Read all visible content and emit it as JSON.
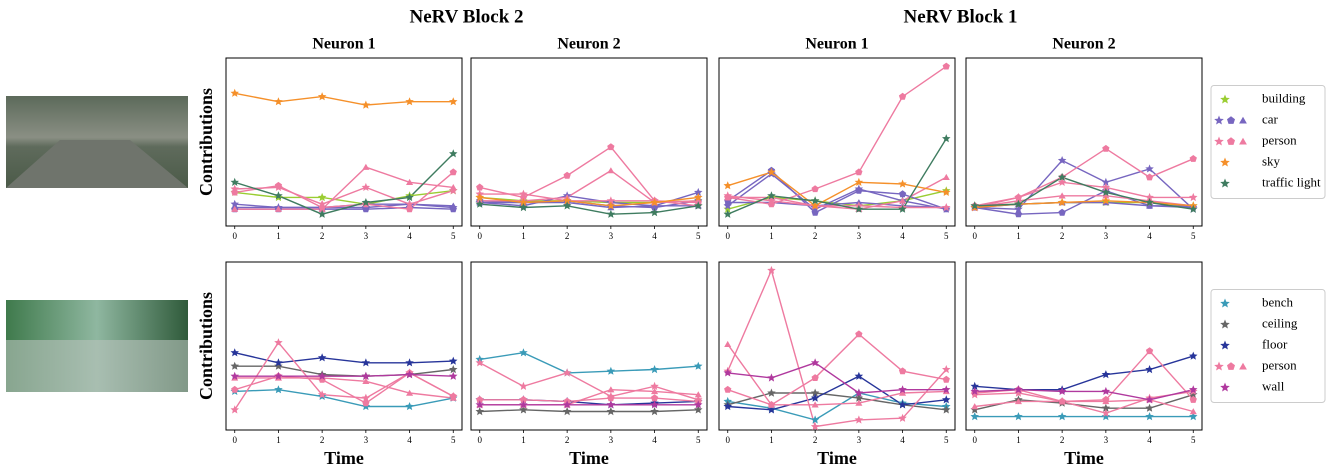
{
  "headers": [
    "NeRV Block 2",
    "NeRV Block 1"
  ],
  "chart_data": [
    {
      "type": "line",
      "title": "Neuron 1",
      "ylabel": "Contributions",
      "legend": "right",
      "x": [
        0,
        1,
        2,
        3,
        4,
        5
      ],
      "xlim": [
        -0.2,
        5.2
      ],
      "xticks": [
        0,
        1,
        2,
        3,
        4,
        5
      ],
      "ylim": [
        0,
        1
      ],
      "series": [
        {
          "name": "building",
          "color": "#9acd32",
          "marker": "star",
          "values": [
            0.2,
            0.17,
            0.17,
            0.13,
            0.18,
            0.21
          ]
        },
        {
          "name": "car",
          "color": "#7766c0",
          "marker": "star",
          "values": [
            0.13,
            0.11,
            0.11,
            0.11,
            0.13,
            0.11
          ]
        },
        {
          "name": "car",
          "color": "#7766c0",
          "marker": "pentagon",
          "values": [
            0.1,
            0.1,
            0.1,
            0.1,
            0.11,
            0.1
          ]
        },
        {
          "name": "car",
          "color": "#7766c0",
          "marker": "triangle",
          "values": [
            0.11,
            0.11,
            0.11,
            0.13,
            0.13,
            0.12
          ]
        },
        {
          "name": "person",
          "color": "#ee7aa0",
          "marker": "star",
          "values": [
            0.22,
            0.23,
            0.13,
            0.23,
            0.13,
            0.21
          ]
        },
        {
          "name": "person",
          "color": "#ee7aa0",
          "marker": "pentagon",
          "values": [
            0.2,
            0.24,
            0.11,
            0.13,
            0.1,
            0.32
          ]
        },
        {
          "name": "person",
          "color": "#ee7aa0",
          "marker": "triangle",
          "values": [
            0.1,
            0.1,
            0.1,
            0.35,
            0.26,
            0.23
          ]
        },
        {
          "name": "sky",
          "color": "#f5902a",
          "marker": "star",
          "values": [
            0.79,
            0.74,
            0.77,
            0.72,
            0.74,
            0.74
          ]
        },
        {
          "name": "traffic light",
          "color": "#3f7c60",
          "marker": "star",
          "values": [
            0.26,
            0.18,
            0.07,
            0.14,
            0.17,
            0.43
          ]
        }
      ]
    },
    {
      "type": "line",
      "title": "Neuron 2",
      "x": [
        0,
        1,
        2,
        3,
        4,
        5
      ],
      "xlim": [
        -0.2,
        5.2
      ],
      "xticks": [
        0,
        1,
        2,
        3,
        4,
        5
      ],
      "ylim": [
        0,
        1
      ],
      "series": [
        {
          "name": "building",
          "color": "#9acd32",
          "marker": "star",
          "values": [
            0.17,
            0.15,
            0.15,
            0.14,
            0.14,
            0.15
          ]
        },
        {
          "name": "car",
          "color": "#7766c0",
          "marker": "star",
          "values": [
            0.14,
            0.12,
            0.18,
            0.14,
            0.12,
            0.2
          ]
        },
        {
          "name": "car",
          "color": "#7766c0",
          "marker": "pentagon",
          "values": [
            0.15,
            0.14,
            0.15,
            0.12,
            0.11,
            0.15
          ]
        },
        {
          "name": "car",
          "color": "#7766c0",
          "marker": "triangle",
          "values": [
            0.14,
            0.14,
            0.14,
            0.11,
            0.12,
            0.12
          ]
        },
        {
          "name": "person",
          "color": "#ee7aa0",
          "marker": "star",
          "values": [
            0.19,
            0.19,
            0.15,
            0.15,
            0.15,
            0.12
          ]
        },
        {
          "name": "person",
          "color": "#ee7aa0",
          "marker": "pentagon",
          "values": [
            0.23,
            0.17,
            0.3,
            0.47,
            0.15,
            0.14
          ]
        },
        {
          "name": "person",
          "color": "#ee7aa0",
          "marker": "triangle",
          "values": [
            0.15,
            0.15,
            0.17,
            0.33,
            0.14,
            0.15
          ]
        },
        {
          "name": "sky",
          "color": "#f5902a",
          "marker": "star",
          "values": [
            0.17,
            0.14,
            0.15,
            0.12,
            0.14,
            0.17
          ]
        },
        {
          "name": "traffic light",
          "color": "#3f7c60",
          "marker": "star",
          "values": [
            0.13,
            0.11,
            0.12,
            0.07,
            0.08,
            0.12
          ]
        }
      ]
    },
    {
      "type": "line",
      "title": "Neuron 1",
      "x": [
        0,
        1,
        2,
        3,
        4,
        5
      ],
      "xlim": [
        -0.2,
        5.2
      ],
      "xticks": [
        0,
        1,
        2,
        3,
        4,
        5
      ],
      "ylim": [
        0,
        1
      ],
      "series": [
        {
          "name": "building",
          "color": "#9acd32",
          "marker": "star",
          "values": [
            0.1,
            0.17,
            0.15,
            0.12,
            0.15,
            0.21
          ]
        },
        {
          "name": "car",
          "color": "#7766c0",
          "marker": "star",
          "values": [
            0.12,
            0.31,
            0.1,
            0.22,
            0.15,
            0.1
          ]
        },
        {
          "name": "car",
          "color": "#7766c0",
          "marker": "pentagon",
          "values": [
            0.15,
            0.33,
            0.08,
            0.21,
            0.19,
            0.1
          ]
        },
        {
          "name": "car",
          "color": "#7766c0",
          "marker": "triangle",
          "values": [
            0.14,
            0.14,
            0.12,
            0.14,
            0.12,
            0.11
          ]
        },
        {
          "name": "person",
          "color": "#ee7aa0",
          "marker": "star",
          "values": [
            0.18,
            0.15,
            0.12,
            0.12,
            0.11,
            0.11
          ]
        },
        {
          "name": "person",
          "color": "#ee7aa0",
          "marker": "pentagon",
          "values": [
            0.17,
            0.13,
            0.22,
            0.32,
            0.77,
            0.95
          ]
        },
        {
          "name": "person",
          "color": "#ee7aa0",
          "marker": "triangle",
          "values": [
            0.17,
            0.17,
            0.12,
            0.1,
            0.15,
            0.29
          ]
        },
        {
          "name": "sky",
          "color": "#f5902a",
          "marker": "star",
          "values": [
            0.24,
            0.32,
            0.12,
            0.26,
            0.25,
            0.2
          ]
        },
        {
          "name": "traffic light",
          "color": "#3f7c60",
          "marker": "star",
          "values": [
            0.07,
            0.18,
            0.15,
            0.1,
            0.1,
            0.52
          ]
        }
      ]
    },
    {
      "type": "line",
      "title": "Neuron 2",
      "x": [
        0,
        1,
        2,
        3,
        4,
        5
      ],
      "xlim": [
        -0.2,
        5.2
      ],
      "xticks": [
        0,
        1,
        2,
        3,
        4,
        5
      ],
      "ylim": [
        0,
        1
      ],
      "series": [
        {
          "name": "building",
          "color": "#9acd32",
          "marker": "star",
          "values": [
            0.12,
            0.13,
            0.14,
            0.14,
            0.14,
            0.12
          ]
        },
        {
          "name": "car",
          "color": "#7766c0",
          "marker": "star",
          "values": [
            0.11,
            0.1,
            0.39,
            0.26,
            0.34,
            0.1
          ]
        },
        {
          "name": "car",
          "color": "#7766c0",
          "marker": "pentagon",
          "values": [
            0.11,
            0.07,
            0.08,
            0.21,
            0.12,
            0.11
          ]
        },
        {
          "name": "car",
          "color": "#7766c0",
          "marker": "triangle",
          "values": [
            0.11,
            0.13,
            0.14,
            0.14,
            0.12,
            0.12
          ]
        },
        {
          "name": "person",
          "color": "#ee7aa0",
          "marker": "star",
          "values": [
            0.11,
            0.17,
            0.26,
            0.23,
            0.17,
            0.17
          ]
        },
        {
          "name": "person",
          "color": "#ee7aa0",
          "marker": "pentagon",
          "values": [
            0.12,
            0.17,
            0.29,
            0.46,
            0.29,
            0.4
          ]
        },
        {
          "name": "person",
          "color": "#ee7aa0",
          "marker": "triangle",
          "values": [
            0.11,
            0.15,
            0.18,
            0.18,
            0.15,
            0.12
          ]
        },
        {
          "name": "sky",
          "color": "#f5902a",
          "marker": "star",
          "values": [
            0.11,
            0.13,
            0.14,
            0.15,
            0.14,
            0.12
          ]
        },
        {
          "name": "traffic light",
          "color": "#3f7c60",
          "marker": "star",
          "values": [
            0.12,
            0.13,
            0.29,
            0.2,
            0.14,
            0.1
          ]
        }
      ]
    },
    {
      "type": "line",
      "ylabel": "Contributions",
      "xlabel": "Time",
      "legend": "right",
      "x": [
        0,
        1,
        2,
        3,
        4,
        5
      ],
      "xlim": [
        -0.2,
        5.2
      ],
      "xticks": [
        0,
        1,
        2,
        3,
        4,
        5
      ],
      "ylim": [
        0,
        1
      ],
      "series": [
        {
          "name": "bench",
          "color": "#3a9bb8",
          "marker": "star",
          "values": [
            0.23,
            0.24,
            0.2,
            0.14,
            0.14,
            0.19
          ]
        },
        {
          "name": "ceiling",
          "color": "#666666",
          "marker": "star",
          "values": [
            0.38,
            0.38,
            0.33,
            0.32,
            0.33,
            0.36
          ]
        },
        {
          "name": "floor",
          "color": "#27359a",
          "marker": "star",
          "values": [
            0.46,
            0.4,
            0.43,
            0.4,
            0.4,
            0.41
          ]
        },
        {
          "name": "person",
          "color": "#ee7aa0",
          "marker": "star",
          "values": [
            0.12,
            0.52,
            0.21,
            0.19,
            0.34,
            0.2
          ]
        },
        {
          "name": "person",
          "color": "#ee7aa0",
          "marker": "pentagon",
          "values": [
            0.24,
            0.32,
            0.3,
            0.16,
            0.34,
            0.2
          ]
        },
        {
          "name": "person",
          "color": "#ee7aa0",
          "marker": "triangle",
          "values": [
            0.31,
            0.31,
            0.31,
            0.29,
            0.22,
            0.19
          ]
        },
        {
          "name": "wall",
          "color": "#b0399e",
          "marker": "star",
          "values": [
            0.32,
            0.32,
            0.32,
            0.32,
            0.33,
            0.32
          ]
        }
      ]
    },
    {
      "type": "line",
      "xlabel": "Time",
      "x": [
        0,
        1,
        2,
        3,
        4,
        5
      ],
      "xlim": [
        -0.2,
        5.2
      ],
      "xticks": [
        0,
        1,
        2,
        3,
        4,
        5
      ],
      "ylim": [
        0,
        1
      ],
      "series": [
        {
          "name": "bench",
          "color": "#3a9bb8",
          "marker": "star",
          "values": [
            0.42,
            0.46,
            0.34,
            0.35,
            0.36,
            0.38
          ]
        },
        {
          "name": "ceiling",
          "color": "#666666",
          "marker": "star",
          "values": [
            0.11,
            0.12,
            0.11,
            0.11,
            0.11,
            0.12
          ]
        },
        {
          "name": "floor",
          "color": "#27359a",
          "marker": "star",
          "values": [
            0.18,
            0.18,
            0.17,
            0.15,
            0.16,
            0.17
          ]
        },
        {
          "name": "person",
          "color": "#ee7aa0",
          "marker": "star",
          "values": [
            0.4,
            0.26,
            0.34,
            0.2,
            0.26,
            0.18
          ]
        },
        {
          "name": "person",
          "color": "#ee7aa0",
          "marker": "pentagon",
          "values": [
            0.18,
            0.18,
            0.17,
            0.19,
            0.19,
            0.17
          ]
        },
        {
          "name": "person",
          "color": "#ee7aa0",
          "marker": "triangle",
          "values": [
            0.15,
            0.15,
            0.15,
            0.24,
            0.23,
            0.21
          ]
        },
        {
          "name": "wall",
          "color": "#b0399e",
          "marker": "star",
          "values": [
            0.15,
            0.15,
            0.15,
            0.15,
            0.15,
            0.15
          ]
        }
      ]
    },
    {
      "type": "line",
      "xlabel": "Time",
      "x": [
        0,
        1,
        2,
        3,
        4,
        5
      ],
      "xlim": [
        -0.2,
        5.2
      ],
      "xticks": [
        0,
        1,
        2,
        3,
        4,
        5
      ],
      "ylim": [
        0,
        1
      ],
      "series": [
        {
          "name": "bench",
          "color": "#3a9bb8",
          "marker": "star",
          "values": [
            0.17,
            0.13,
            0.06,
            0.22,
            0.16,
            0.14
          ]
        },
        {
          "name": "ceiling",
          "color": "#666666",
          "marker": "star",
          "values": [
            0.15,
            0.22,
            0.22,
            0.19,
            0.15,
            0.12
          ]
        },
        {
          "name": "floor",
          "color": "#27359a",
          "marker": "star",
          "values": [
            0.14,
            0.12,
            0.19,
            0.32,
            0.15,
            0.18
          ]
        },
        {
          "name": "person",
          "color": "#ee7aa0",
          "marker": "star",
          "values": [
            0.35,
            0.95,
            0.02,
            0.06,
            0.07,
            0.36
          ]
        },
        {
          "name": "person",
          "color": "#ee7aa0",
          "marker": "pentagon",
          "values": [
            0.24,
            0.15,
            0.31,
            0.57,
            0.35,
            0.3
          ]
        },
        {
          "name": "person",
          "color": "#ee7aa0",
          "marker": "triangle",
          "values": [
            0.51,
            0.15,
            0.15,
            0.16,
            0.22,
            0.23
          ]
        },
        {
          "name": "wall",
          "color": "#b0399e",
          "marker": "star",
          "values": [
            0.34,
            0.31,
            0.4,
            0.22,
            0.24,
            0.24
          ]
        }
      ]
    },
    {
      "type": "line",
      "xlabel": "Time",
      "x": [
        0,
        1,
        2,
        3,
        4,
        5
      ],
      "xlim": [
        -0.2,
        5.2
      ],
      "xticks": [
        0,
        1,
        2,
        3,
        4,
        5
      ],
      "ylim": [
        0,
        1
      ],
      "series": [
        {
          "name": "bench",
          "color": "#3a9bb8",
          "marker": "star",
          "values": [
            0.08,
            0.08,
            0.08,
            0.08,
            0.08,
            0.08
          ]
        },
        {
          "name": "ceiling",
          "color": "#666666",
          "marker": "star",
          "values": [
            0.12,
            0.18,
            0.16,
            0.13,
            0.13,
            0.21
          ]
        },
        {
          "name": "floor",
          "color": "#27359a",
          "marker": "star",
          "values": [
            0.26,
            0.24,
            0.24,
            0.33,
            0.36,
            0.44
          ]
        },
        {
          "name": "person",
          "color": "#ee7aa0",
          "marker": "star",
          "values": [
            0.21,
            0.22,
            0.17,
            0.1,
            0.19,
            0.23
          ]
        },
        {
          "name": "person",
          "color": "#ee7aa0",
          "marker": "pentagon",
          "values": [
            0.22,
            0.24,
            0.17,
            0.18,
            0.47,
            0.18
          ]
        },
        {
          "name": "person",
          "color": "#ee7aa0",
          "marker": "triangle",
          "values": [
            0.14,
            0.17,
            0.17,
            0.17,
            0.18,
            0.11
          ]
        },
        {
          "name": "wall",
          "color": "#b0399e",
          "marker": "star",
          "values": [
            0.23,
            0.24,
            0.23,
            0.23,
            0.18,
            0.24
          ]
        }
      ]
    }
  ]
}
